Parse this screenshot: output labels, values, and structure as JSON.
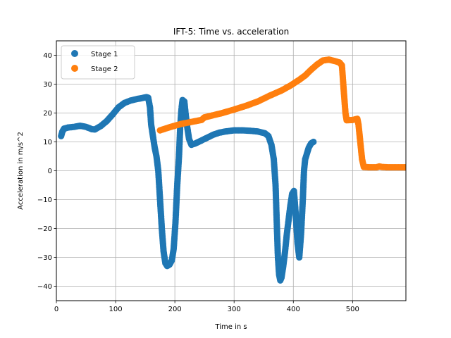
{
  "chart_data": {
    "type": "scatter",
    "title": "IFT-5: Time vs. acceleration",
    "xlabel": "Time in s",
    "ylabel": "Acceleration in m/s^2",
    "xlim": [
      0,
      590
    ],
    "ylim": [
      -45,
      45
    ],
    "xticks": [
      0,
      100,
      200,
      300,
      400,
      500
    ],
    "yticks": [
      -40,
      -30,
      -20,
      -10,
      0,
      10,
      20,
      30,
      40
    ],
    "grid": true,
    "legend_position": "top-left",
    "series": [
      {
        "name": "Stage 1",
        "color": "#1f77b4",
        "anchors": [
          [
            8,
            12
          ],
          [
            10,
            13.5
          ],
          [
            13,
            14.6
          ],
          [
            20,
            15
          ],
          [
            30,
            15.2
          ],
          [
            40,
            15.6
          ],
          [
            50,
            15.2
          ],
          [
            60,
            14.4
          ],
          [
            65,
            14.3
          ],
          [
            75,
            15.5
          ],
          [
            85,
            17.2
          ],
          [
            95,
            19.5
          ],
          [
            105,
            22
          ],
          [
            115,
            23.5
          ],
          [
            125,
            24.3
          ],
          [
            135,
            24.8
          ],
          [
            145,
            25.2
          ],
          [
            152,
            25.5
          ],
          [
            155,
            25.3
          ],
          [
            158,
            22
          ],
          [
            160,
            16
          ],
          [
            163,
            12
          ],
          [
            166,
            8
          ],
          [
            169,
            5
          ],
          [
            172,
            0
          ],
          [
            175,
            -10
          ],
          [
            178,
            -20
          ],
          [
            181,
            -28
          ],
          [
            184,
            -32
          ],
          [
            187,
            -33
          ],
          [
            191,
            -32.5
          ],
          [
            195,
            -31
          ],
          [
            198,
            -27
          ],
          [
            201,
            -18
          ],
          [
            204,
            -5
          ],
          [
            207,
            5
          ],
          [
            209,
            15
          ],
          [
            211,
            21
          ],
          [
            213,
            24.5
          ],
          [
            216,
            24
          ],
          [
            218,
            20
          ],
          [
            221,
            15
          ],
          [
            224,
            11
          ],
          [
            228,
            9
          ],
          [
            235,
            9.5
          ],
          [
            245,
            10.5
          ],
          [
            255,
            11.5
          ],
          [
            265,
            12.5
          ],
          [
            275,
            13.2
          ],
          [
            285,
            13.6
          ],
          [
            300,
            14
          ],
          [
            315,
            14
          ],
          [
            330,
            13.8
          ],
          [
            340,
            13.6
          ],
          [
            352,
            13
          ],
          [
            358,
            12
          ],
          [
            363,
            9
          ],
          [
            367,
            4
          ],
          [
            370,
            -5
          ],
          [
            372,
            -18
          ],
          [
            374,
            -30
          ],
          [
            376,
            -36
          ],
          [
            378,
            -38
          ],
          [
            380,
            -37
          ],
          [
            383,
            -33
          ],
          [
            386,
            -28
          ],
          [
            389,
            -22
          ],
          [
            392,
            -17
          ],
          [
            395,
            -12
          ],
          [
            398,
            -8
          ],
          [
            401,
            -7
          ],
          [
            404,
            -15
          ],
          [
            407,
            -25
          ],
          [
            410,
            -30
          ],
          [
            413,
            -22
          ],
          [
            416,
            -10
          ],
          [
            418,
            0
          ],
          [
            420,
            4
          ],
          [
            423,
            6
          ],
          [
            426,
            8
          ],
          [
            430,
            9.5
          ],
          [
            434,
            10
          ]
        ]
      },
      {
        "name": "Stage 2",
        "color": "#ff7f0e",
        "anchors": [
          [
            175,
            14
          ],
          [
            190,
            15
          ],
          [
            210,
            16.2
          ],
          [
            230,
            17
          ],
          [
            245,
            17.6
          ],
          [
            250,
            18.5
          ],
          [
            260,
            19
          ],
          [
            280,
            20
          ],
          [
            300,
            21.2
          ],
          [
            320,
            22.5
          ],
          [
            340,
            24
          ],
          [
            360,
            26
          ],
          [
            380,
            27.8
          ],
          [
            395,
            29.5
          ],
          [
            410,
            31.5
          ],
          [
            420,
            33
          ],
          [
            430,
            35
          ],
          [
            440,
            36.8
          ],
          [
            450,
            38.2
          ],
          [
            460,
            38.5
          ],
          [
            470,
            38
          ],
          [
            478,
            37.5
          ],
          [
            482,
            36.5
          ],
          [
            485,
            28
          ],
          [
            488,
            20
          ],
          [
            490,
            17.5
          ],
          [
            500,
            17.6
          ],
          [
            508,
            18
          ],
          [
            510,
            16
          ],
          [
            513,
            10
          ],
          [
            516,
            4
          ],
          [
            519,
            1.3
          ],
          [
            530,
            1.2
          ],
          [
            540,
            1.2
          ],
          [
            545,
            1.5
          ],
          [
            550,
            1.3
          ],
          [
            560,
            1.2
          ],
          [
            575,
            1.2
          ],
          [
            590,
            1.2
          ]
        ]
      }
    ]
  }
}
